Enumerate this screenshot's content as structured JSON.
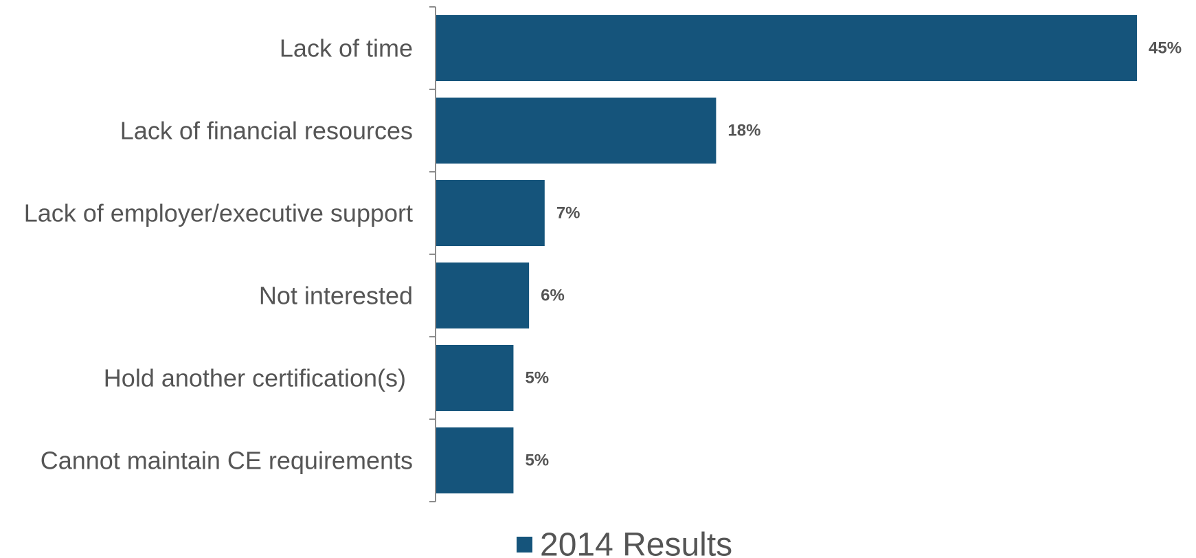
{
  "chart_data": {
    "type": "bar",
    "orientation": "horizontal",
    "categories": [
      "Lack of time",
      "Lack of financial resources",
      "Lack of employer/executive support",
      "Not interested",
      "Hold another certification(s) ",
      "Cannot maintain CE requirements"
    ],
    "series": [
      {
        "name": "2014 Results",
        "values": [
          45,
          18,
          7,
          6,
          5,
          5
        ],
        "labels": [
          "45%",
          "18%",
          "7%",
          "6%",
          "5%",
          "5%"
        ],
        "color": "#15547b"
      }
    ],
    "xlim": [
      0,
      45
    ],
    "grid": false,
    "legend": "bottom-center"
  },
  "colors": {
    "bar": "#15547b",
    "text": "#555555",
    "axis": "#8c8c8c"
  }
}
